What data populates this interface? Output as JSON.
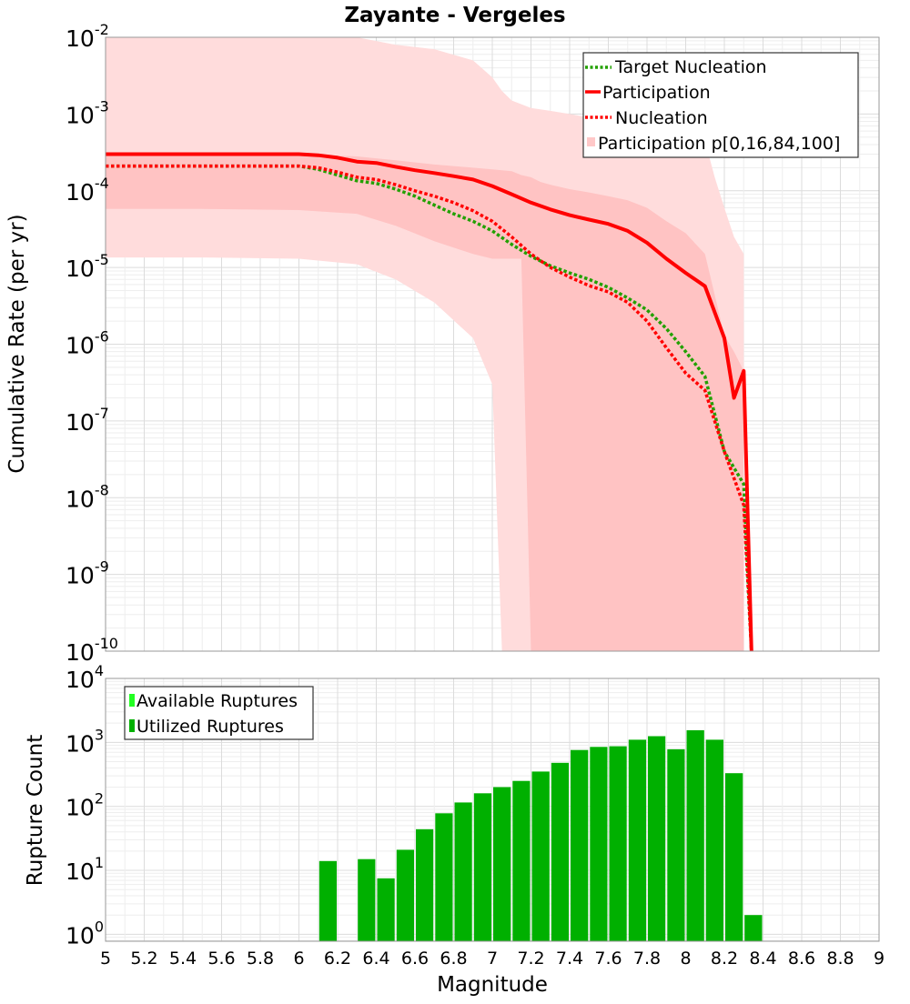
{
  "chart_data": [
    {
      "type": "line",
      "title": "Zayante - Vergeles",
      "ylabel": "Cumulative Rate (per yr)",
      "y_scale": "log",
      "ylim": [
        1e-10,
        0.01
      ],
      "xlim": [
        5,
        9
      ],
      "grid": true,
      "legend_placement": "top-right",
      "y_tick_labels": [
        {
          "base": "10",
          "exp": "-10"
        },
        {
          "base": "10",
          "exp": "-9"
        },
        {
          "base": "10",
          "exp": "-8"
        },
        {
          "base": "10",
          "exp": "-7"
        },
        {
          "base": "10",
          "exp": "-6"
        },
        {
          "base": "10",
          "exp": "-5"
        },
        {
          "base": "10",
          "exp": "-4"
        },
        {
          "base": "10",
          "exp": "-3"
        },
        {
          "base": "10",
          "exp": "-2"
        }
      ],
      "legend": [
        {
          "label": "Target Nucleation",
          "style": "dotted",
          "color": "#22a000"
        },
        {
          "label": "Participation",
          "style": "solid",
          "color": "#ff0000"
        },
        {
          "label": "Nucleation",
          "style": "dotted",
          "color": "#ff0000"
        },
        {
          "label": "Participation p[0,16,84,100]",
          "style": "band",
          "color": "#ffc8c8"
        }
      ],
      "series": [
        {
          "name": "Target Nucleation",
          "style": "dotted",
          "color": "#22a000",
          "x": [
            5.0,
            5.5,
            6.0,
            6.1,
            6.2,
            6.3,
            6.4,
            6.5,
            6.6,
            6.7,
            6.8,
            6.9,
            7.0,
            7.1,
            7.2,
            7.3,
            7.4,
            7.5,
            7.6,
            7.7,
            7.8,
            7.9,
            8.0,
            8.1,
            8.2,
            8.3,
            8.34
          ],
          "y": [
            0.00021,
            0.00021,
            0.00021,
            0.00019,
            0.00016,
            0.000135,
            0.000125,
            0.000105,
            8.5e-05,
            6.5e-05,
            5e-05,
            4e-05,
            3e-05,
            2e-05,
            1.4e-05,
            1.05e-05,
            8.5e-06,
            7e-06,
            5.5e-06,
            4e-06,
            2.8e-06,
            1.6e-06,
            8e-07,
            3.8e-07,
            4e-08,
            1.5e-08,
            1e-10
          ]
        },
        {
          "name": "Participation",
          "style": "solid",
          "color": "#ff0000",
          "x": [
            5.0,
            5.5,
            6.0,
            6.1,
            6.2,
            6.3,
            6.4,
            6.5,
            6.6,
            6.7,
            6.8,
            6.9,
            7.0,
            7.1,
            7.2,
            7.3,
            7.4,
            7.5,
            7.6,
            7.7,
            7.8,
            7.9,
            8.0,
            8.1,
            8.2,
            8.25,
            8.3,
            8.34
          ],
          "y": [
            0.0003,
            0.0003,
            0.0003,
            0.00029,
            0.00027,
            0.00024,
            0.00023,
            0.000205,
            0.000185,
            0.00017,
            0.000155,
            0.00014,
            0.000115,
            9e-05,
            7e-05,
            5.7e-05,
            4.8e-05,
            4.2e-05,
            3.7e-05,
            3e-05,
            2.1e-05,
            1.3e-05,
            8.5e-06,
            5.7e-06,
            1.2e-06,
            2e-07,
            4.5e-07,
            1e-10
          ]
        },
        {
          "name": "Nucleation",
          "style": "dotted",
          "color": "#ff0000",
          "x": [
            5.0,
            5.5,
            6.0,
            6.1,
            6.2,
            6.3,
            6.4,
            6.5,
            6.6,
            6.7,
            6.8,
            6.9,
            7.0,
            7.1,
            7.2,
            7.3,
            7.4,
            7.5,
            7.6,
            7.7,
            7.8,
            7.9,
            8.0,
            8.1,
            8.2,
            8.3,
            8.34
          ],
          "y": [
            0.00021,
            0.00021,
            0.00021,
            0.0002,
            0.000175,
            0.00015,
            0.00014,
            0.00012,
            0.0001,
            8.5e-05,
            7e-05,
            5.5e-05,
            4e-05,
            2.5e-05,
            1.5e-05,
            1e-05,
            7.5e-06,
            5.8e-06,
            4.8e-06,
            3.5e-06,
            2e-06,
            9e-07,
            4.2e-07,
            2.5e-07,
            4e-08,
            8e-09,
            1e-10
          ]
        }
      ],
      "band_outer": {
        "x": [
          5.0,
          5.5,
          6.0,
          6.3,
          6.5,
          6.7,
          6.9,
          7.0,
          7.05,
          7.1,
          7.2,
          7.3,
          7.4,
          7.5,
          7.6,
          7.7,
          7.8,
          7.9,
          7.95,
          8.0,
          8.1,
          8.15,
          8.2,
          8.25,
          8.3
        ],
        "upper": [
          0.01,
          0.01,
          0.01,
          0.01,
          0.008,
          0.007,
          0.005,
          0.003,
          0.002,
          0.0015,
          0.0012,
          0.0011,
          0.001,
          0.0009,
          0.00085,
          0.0008,
          0.0008,
          0.00075,
          0.0006,
          0.00055,
          0.00045,
          0.00015,
          6e-05,
          2.5e-05,
          1.5e-05
        ],
        "lower": [
          1.35e-05,
          1.35e-05,
          1.3e-05,
          1.1e-05,
          7e-06,
          3.5e-06,
          1.2e-06,
          3e-07,
          1e-10,
          1e-10,
          1e-10,
          1e-10,
          1e-10,
          1e-10,
          1e-10,
          1e-10,
          1e-10,
          1e-10,
          1e-10,
          1e-10,
          1e-10,
          1e-10,
          1e-10,
          1e-10,
          1e-10
        ]
      },
      "band_inner": {
        "x": [
          5.0,
          5.5,
          6.0,
          6.3,
          6.5,
          6.7,
          6.9,
          7.0,
          7.1,
          7.15,
          7.2,
          7.25,
          7.3,
          7.4,
          7.5,
          7.6,
          7.7,
          7.8,
          7.9,
          8.0,
          8.1,
          8.2,
          8.25,
          8.3
        ],
        "upper": [
          0.0003,
          0.0003,
          0.0003,
          0.00028,
          0.00025,
          0.00022,
          0.0002,
          0.00019,
          0.00018,
          0.00016,
          0.00015,
          0.00013,
          0.00012,
          0.000105,
          9.5e-05,
          8.5e-05,
          7.5e-05,
          6e-05,
          4e-05,
          2.8e-05,
          1.5e-05,
          1.3e-06,
          8e-07,
          4.5e-07
        ],
        "lower": [
          5.8e-05,
          5.8e-05,
          5.6e-05,
          5e-05,
          3.5e-05,
          2.2e-05,
          1.5e-05,
          1.3e-05,
          1.3e-05,
          1.3e-05,
          1e-10,
          1e-10,
          1e-10,
          1e-10,
          1e-10,
          1e-10,
          1e-10,
          1e-10,
          1e-10,
          1e-10,
          1e-10,
          1e-10,
          1e-10,
          1e-10
        ]
      }
    },
    {
      "type": "bar",
      "xlabel": "Magnitude",
      "ylabel": "Rupture Count",
      "y_scale": "log",
      "ylim": [
        0.78,
        10000
      ],
      "xlim": [
        5,
        9
      ],
      "grid": true,
      "legend_placement": "top-left",
      "x_tick_labels": [
        "5",
        "5.2",
        "5.4",
        "5.6",
        "5.8",
        "6",
        "6.2",
        "6.4",
        "6.6",
        "6.8",
        "7",
        "7.2",
        "7.4",
        "7.6",
        "7.8",
        "8",
        "8.2",
        "8.4",
        "8.6",
        "8.8",
        "9"
      ],
      "y_tick_labels": [
        {
          "base": "10",
          "exp": "0"
        },
        {
          "base": "10",
          "exp": "1"
        },
        {
          "base": "10",
          "exp": "2"
        },
        {
          "base": "10",
          "exp": "3"
        },
        {
          "base": "10",
          "exp": "4"
        }
      ],
      "legend": [
        {
          "label": "Available Ruptures",
          "color": "#22ff22"
        },
        {
          "label": "Utilized Ruptures",
          "color": "#00b000"
        }
      ],
      "bin_width": 0.1,
      "series": [
        {
          "name": "Utilized Ruptures",
          "color": "#00b000",
          "x": [
            6.15,
            6.35,
            6.45,
            6.55,
            6.65,
            6.75,
            6.85,
            6.95,
            7.05,
            7.15,
            7.25,
            7.35,
            7.45,
            7.55,
            7.65,
            7.75,
            7.85,
            7.95,
            8.05,
            8.15,
            8.25,
            8.35
          ],
          "values": [
            14,
            15,
            7.5,
            21,
            44,
            78,
            115,
            160,
            200,
            250,
            350,
            480,
            760,
            850,
            870,
            1100,
            1250,
            780,
            1550,
            1100,
            330,
            2
          ]
        }
      ]
    }
  ]
}
